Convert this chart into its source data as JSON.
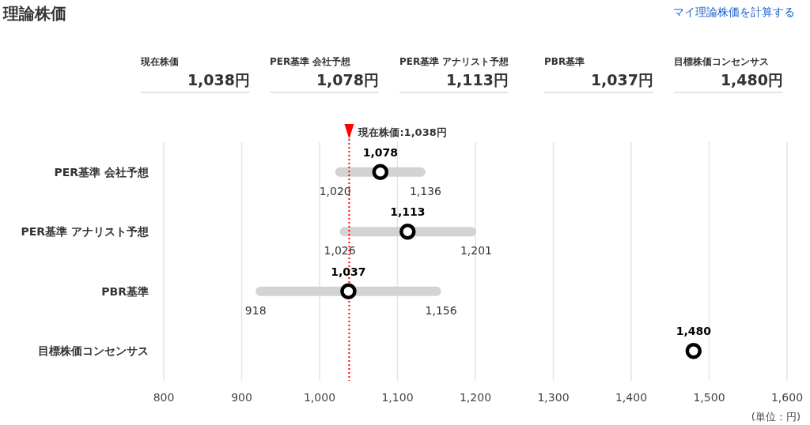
{
  "chart_data": {
    "type": "bar",
    "orientation": "horizontal",
    "title": "理論株価",
    "categories": [
      "PER基準 会社予想",
      "PER基準 アナリスト予想",
      "PBR基準",
      "目標株価コンセンサス"
    ],
    "series": [
      {
        "type": "bar",
        "color": "#d3d3d3",
        "base": [
          1020,
          1026,
          918,
          null
        ],
        "values": [
          116,
          175,
          238,
          null
        ]
      },
      {
        "type": "scatter",
        "color": "#000000",
        "marker": "circle",
        "values": [
          1078,
          1113,
          1037,
          1480
        ],
        "value_labels": [
          "1,078",
          "1,113",
          "1,037",
          "1,480"
        ]
      }
    ],
    "xlim": [
      800,
      1600
    ],
    "xticks": [
      {
        "value": 800,
        "label": "800"
      },
      {
        "value": 900,
        "label": "900"
      },
      {
        "value": 1000,
        "label": "1,000"
      },
      {
        "value": 1100,
        "label": "1,100"
      },
      {
        "value": 1200,
        "label": "1,200"
      },
      {
        "value": 1300,
        "label": "1,300"
      },
      {
        "value": 1400,
        "label": "1,400"
      },
      {
        "value": 1500,
        "label": "1,500"
      },
      {
        "value": 1600,
        "label": "1,600"
      }
    ],
    "grid": "x",
    "ref_lines": [
      {
        "axis": "x",
        "value": 1038,
        "label": "現在株価:1,038円",
        "color": "#ff0000",
        "line_style": "dotted"
      }
    ],
    "annotations": [
      "マイ理論株価を計算する",
      "現在株価",
      "1,038円",
      "PER基準 会社予想",
      "1,078円",
      "PER基準 アナリスト予想",
      "1,113円",
      "PBR基準",
      "1,037円",
      "目標株価コンセンサス",
      "1,480円",
      {
        "text": "1,020",
        "x": 1020,
        "y": "PER基準 会社予想"
      },
      {
        "text": "1,136",
        "x": 1136,
        "y": "PER基準 会社予想"
      },
      {
        "text": "1,026",
        "x": 1026,
        "y": "PER基準 アナリスト予想"
      },
      {
        "text": "1,201",
        "x": 1201,
        "y": "PER基準 アナリスト予想"
      },
      {
        "text": "918",
        "x": 918,
        "y": "PBR基準"
      },
      {
        "text": "1,156",
        "x": 1156,
        "y": "PBR基準"
      },
      "(単位：円)"
    ]
  }
}
